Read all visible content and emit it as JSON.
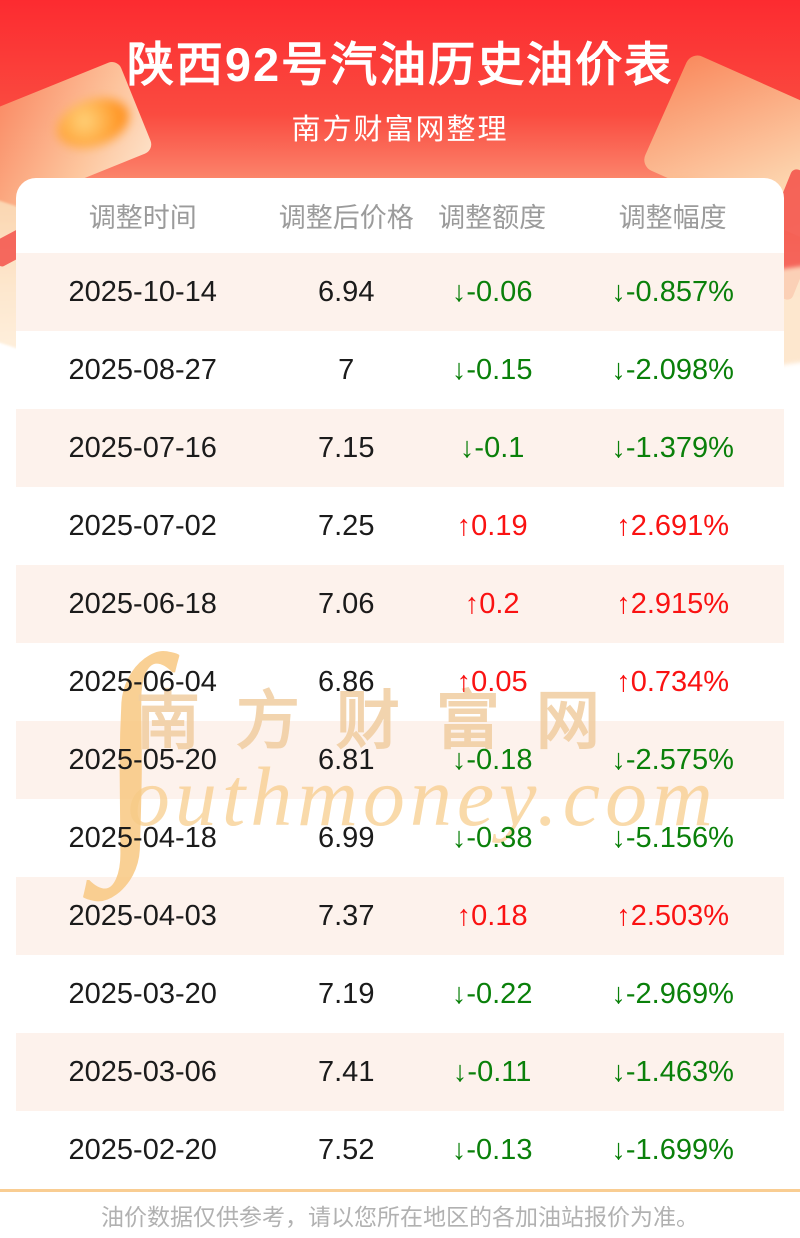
{
  "page": {
    "title": "陕西92号汽油历史油价表",
    "subtitle": "南方财富网整理",
    "footer_note": "油价数据仅供参考，请以您所在地区的各加油站报价为准。"
  },
  "watermark": {
    "big_glyph": "∫",
    "cn": "南方财富网",
    "en": "outhmoney.com"
  },
  "table": {
    "columns": [
      "调整时间",
      "调整后价格",
      "调整额度",
      "调整幅度"
    ],
    "rows": [
      {
        "date": "2025-10-14",
        "price": "6.94",
        "arrow": "↓",
        "change": "-0.06",
        "pct": "-0.857%",
        "dir": "down"
      },
      {
        "date": "2025-08-27",
        "price": "7",
        "arrow": "↓",
        "change": "-0.15",
        "pct": "-2.098%",
        "dir": "down"
      },
      {
        "date": "2025-07-16",
        "price": "7.15",
        "arrow": "↓",
        "change": "-0.1",
        "pct": "-1.379%",
        "dir": "down"
      },
      {
        "date": "2025-07-02",
        "price": "7.25",
        "arrow": "↑",
        "change": "0.19",
        "pct": "2.691%",
        "dir": "up"
      },
      {
        "date": "2025-06-18",
        "price": "7.06",
        "arrow": "↑",
        "change": "0.2",
        "pct": "2.915%",
        "dir": "up"
      },
      {
        "date": "2025-06-04",
        "price": "6.86",
        "arrow": "↑",
        "change": "0.05",
        "pct": "0.734%",
        "dir": "up"
      },
      {
        "date": "2025-05-20",
        "price": "6.81",
        "arrow": "↓",
        "change": "-0.18",
        "pct": "-2.575%",
        "dir": "down"
      },
      {
        "date": "2025-04-18",
        "price": "6.99",
        "arrow": "↓",
        "change": "-0.38",
        "pct": "-5.156%",
        "dir": "down"
      },
      {
        "date": "2025-04-03",
        "price": "7.37",
        "arrow": "↑",
        "change": "0.18",
        "pct": "2.503%",
        "dir": "up"
      },
      {
        "date": "2025-03-20",
        "price": "7.19",
        "arrow": "↓",
        "change": "-0.22",
        "pct": "-2.969%",
        "dir": "down"
      },
      {
        "date": "2025-03-06",
        "price": "7.41",
        "arrow": "↓",
        "change": "-0.11",
        "pct": "-1.463%",
        "dir": "down"
      },
      {
        "date": "2025-02-20",
        "price": "7.52",
        "arrow": "↓",
        "change": "-0.13",
        "pct": "-1.699%",
        "dir": "down"
      }
    ]
  },
  "colors": {
    "banner_red_top": "#fc2b30",
    "banner_orange_bottom": "#fcb685",
    "row_stripe": "#fdf2ec",
    "up_red": "#fa1212",
    "down_green": "#0a800a",
    "divider_orange": "#f9cd92",
    "header_text_gray": "#9b9b9b",
    "footer_text_gray": "#b1b1b1",
    "watermark_tan": "#f3cd9c"
  }
}
